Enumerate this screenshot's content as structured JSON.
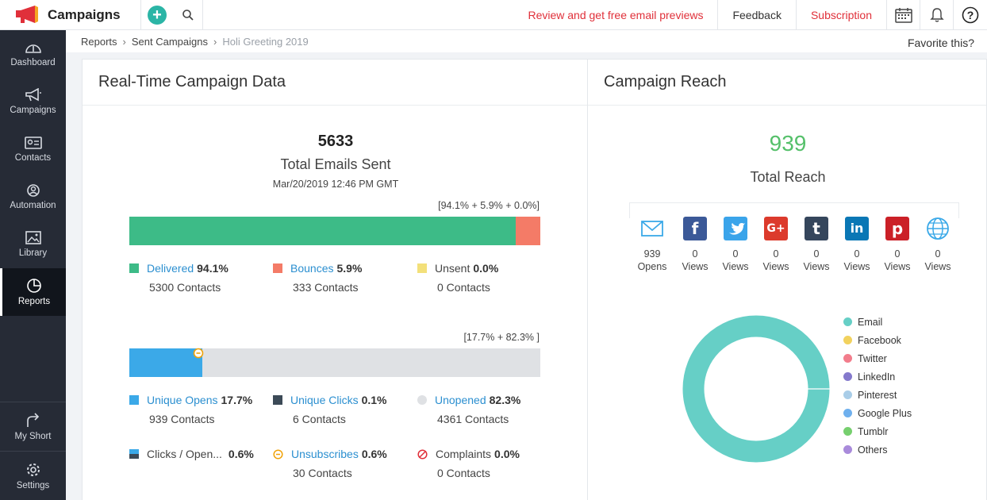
{
  "header": {
    "app_title": "Campaigns",
    "review_link": "Review and get free email previews",
    "feedback_link": "Feedback",
    "subscription_link": "Subscription"
  },
  "sidebar": {
    "items": [
      {
        "label": "Dashboard"
      },
      {
        "label": "Campaigns"
      },
      {
        "label": "Contacts"
      },
      {
        "label": "Automation"
      },
      {
        "label": "Library"
      },
      {
        "label": "Reports"
      }
    ],
    "bottom": [
      {
        "label": "My Short"
      },
      {
        "label": "Settings"
      }
    ]
  },
  "breadcrumb": {
    "items": [
      "Reports",
      "Sent Campaigns"
    ],
    "current": "Holi Greeting 2019",
    "favorite": "Favorite this?"
  },
  "realtime": {
    "title": "Real-Time Campaign Data",
    "total": "5633",
    "total_label": "Total Emails Sent",
    "date": "Mar/20/2019 12:46 PM GMT",
    "bar1_caption": "[94.1% + 5.9% + 0.0%]",
    "bar1_segments": [
      {
        "value": 94.1,
        "color": "#3dbb87"
      },
      {
        "value": 5.9,
        "color": "#f47b67"
      },
      {
        "value": 0.0,
        "color": "#f3e07a"
      }
    ],
    "delivered": {
      "label": "Delivered",
      "pct": "94.1%",
      "contacts": "5300 Contacts",
      "color": "#3dbb87"
    },
    "bounces": {
      "label": "Bounces",
      "pct": "5.9%",
      "contacts": "333 Contacts",
      "color": "#f47b67"
    },
    "unsent": {
      "label": "Unsent",
      "pct": "0.0%",
      "contacts": "0 Contacts",
      "color": "#f3e07a"
    },
    "bar2_caption": "[17.7% + 82.3% ]",
    "bar2_segments": [
      {
        "value": 17.7,
        "color": "#3ba9e8"
      },
      {
        "value": 82.3,
        "color": "#dfe1e4"
      }
    ],
    "unique_opens": {
      "label": "Unique Opens",
      "pct": "17.7%",
      "contacts": "939 Contacts",
      "color": "#3ba9e8"
    },
    "unique_clicks": {
      "label": "Unique Clicks",
      "pct": "0.1%",
      "contacts": "6 Contacts",
      "color": "#3c4a57"
    },
    "unopened": {
      "label": "Unopened",
      "pct": "82.3%",
      "contacts": "4361 Contacts",
      "color": "#dfe1e4"
    },
    "clicks_open": {
      "label": "Clicks / Open...",
      "pct": "0.6%"
    },
    "unsubscribes": {
      "label": "Unsubscribes",
      "pct": "0.6%",
      "contacts": "30 Contacts"
    },
    "complaints": {
      "label": "Complaints",
      "pct": "0.0%",
      "contacts": "0 Contacts"
    }
  },
  "reach": {
    "title": "Campaign Reach",
    "total": "939",
    "total_label": "Total Reach",
    "channels": [
      {
        "icon": "email-icon",
        "count": "939",
        "label": "Opens"
      },
      {
        "icon": "facebook-icon",
        "count": "0",
        "label": "Views",
        "color": "#3b5998"
      },
      {
        "icon": "twitter-icon",
        "count": "0",
        "label": "Views",
        "color": "#3aa4ea"
      },
      {
        "icon": "google-plus-icon",
        "count": "0",
        "label": "Views",
        "color": "#dc3a2c"
      },
      {
        "icon": "tumblr-icon",
        "count": "0",
        "label": "Views",
        "color": "#35465c"
      },
      {
        "icon": "linkedin-icon",
        "count": "0",
        "label": "Views",
        "color": "#0a77b5"
      },
      {
        "icon": "pinterest-icon",
        "count": "0",
        "label": "Views",
        "color": "#cb2027"
      },
      {
        "icon": "globe-icon",
        "count": "0",
        "label": "Views",
        "color": "#3ba9e8"
      }
    ],
    "legend": [
      {
        "label": "Email",
        "color": "#66cfc6"
      },
      {
        "label": "Facebook",
        "color": "#f2d25e"
      },
      {
        "label": "Twitter",
        "color": "#f27d8c"
      },
      {
        "label": "LinkedIn",
        "color": "#8479cc"
      },
      {
        "label": "Pinterest",
        "color": "#a9cde8"
      },
      {
        "label": "Google Plus",
        "color": "#6fb0ee"
      },
      {
        "label": "Tumblr",
        "color": "#76cf6e"
      },
      {
        "label": "Others",
        "color": "#a98bdb"
      }
    ],
    "donut_values": [
      939,
      0,
      0,
      0,
      0,
      0,
      0,
      0
    ]
  }
}
